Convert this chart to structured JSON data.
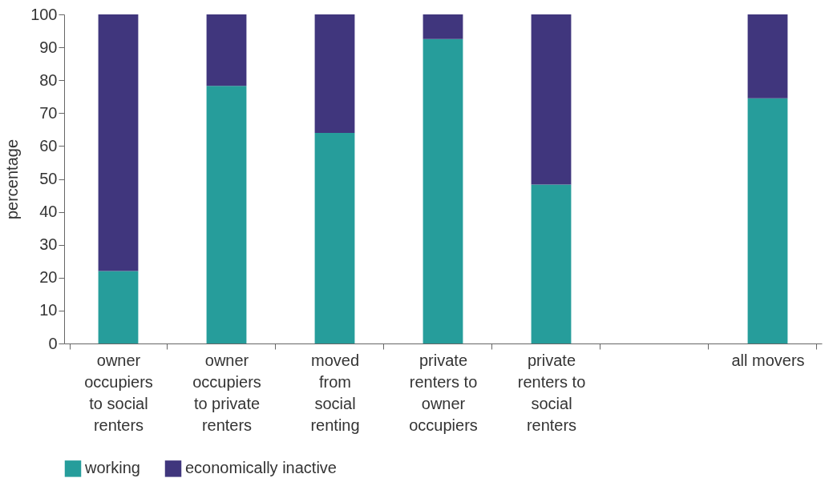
{
  "chart_data": {
    "type": "bar",
    "ylabel": "percentage",
    "stacked": true,
    "categories": [
      "owner\noccupiers\nto social\nrenters",
      "owner\noccupiers\nto private\nrenters",
      "moved\nfrom\nsocial\nrenting",
      "private\nrenters to\nowner\noccupiers",
      "private\nrenters to\nsocial\nrenters",
      null,
      "all movers"
    ],
    "series": [
      {
        "name": "working",
        "color": "#269d9b",
        "values": [
          22,
          78.3,
          64,
          92.5,
          48.3,
          null,
          74.5
        ]
      },
      {
        "name": "economically inactive",
        "color": "#40367d",
        "values": [
          78,
          21.7,
          36,
          7.5,
          51.7,
          null,
          25.5
        ]
      }
    ],
    "ylim": [
      0,
      100
    ],
    "yticks": [
      0,
      10,
      20,
      30,
      40,
      50,
      60,
      70,
      80,
      90,
      100
    ],
    "grid": false,
    "legend": "bottom left"
  }
}
